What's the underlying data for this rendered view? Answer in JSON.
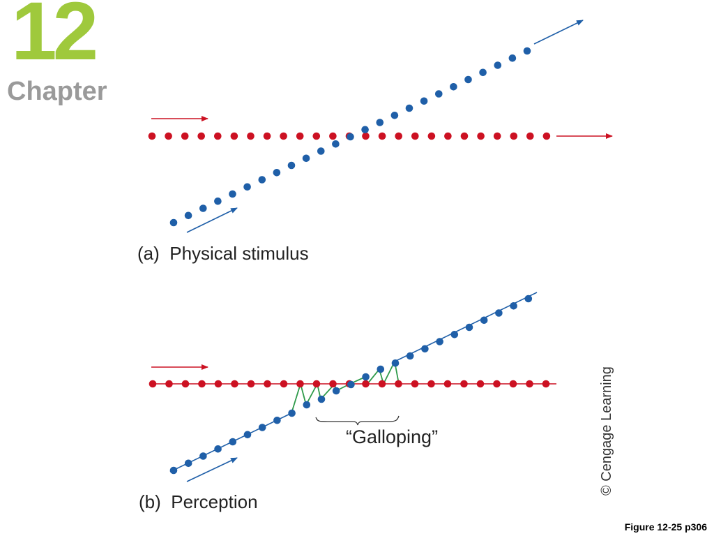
{
  "chapter": {
    "number": "12",
    "label": "Chapter"
  },
  "panels": [
    {
      "id": "a",
      "caption": "(a)  Physical stimulus"
    },
    {
      "id": "b",
      "caption": "(b)  Perception"
    }
  ],
  "annotation": {
    "galloping": "“Galloping”"
  },
  "credit": "© Cengage Learning",
  "figure_ref": "Figure 12-25 p306",
  "colors": {
    "chapter_number": "#9fc93c",
    "chapter_label": "#9a9a9a",
    "red_dots": "#cc1122",
    "blue_dots": "#1f5fa8",
    "gallop_line": "#2e9a4a"
  }
}
